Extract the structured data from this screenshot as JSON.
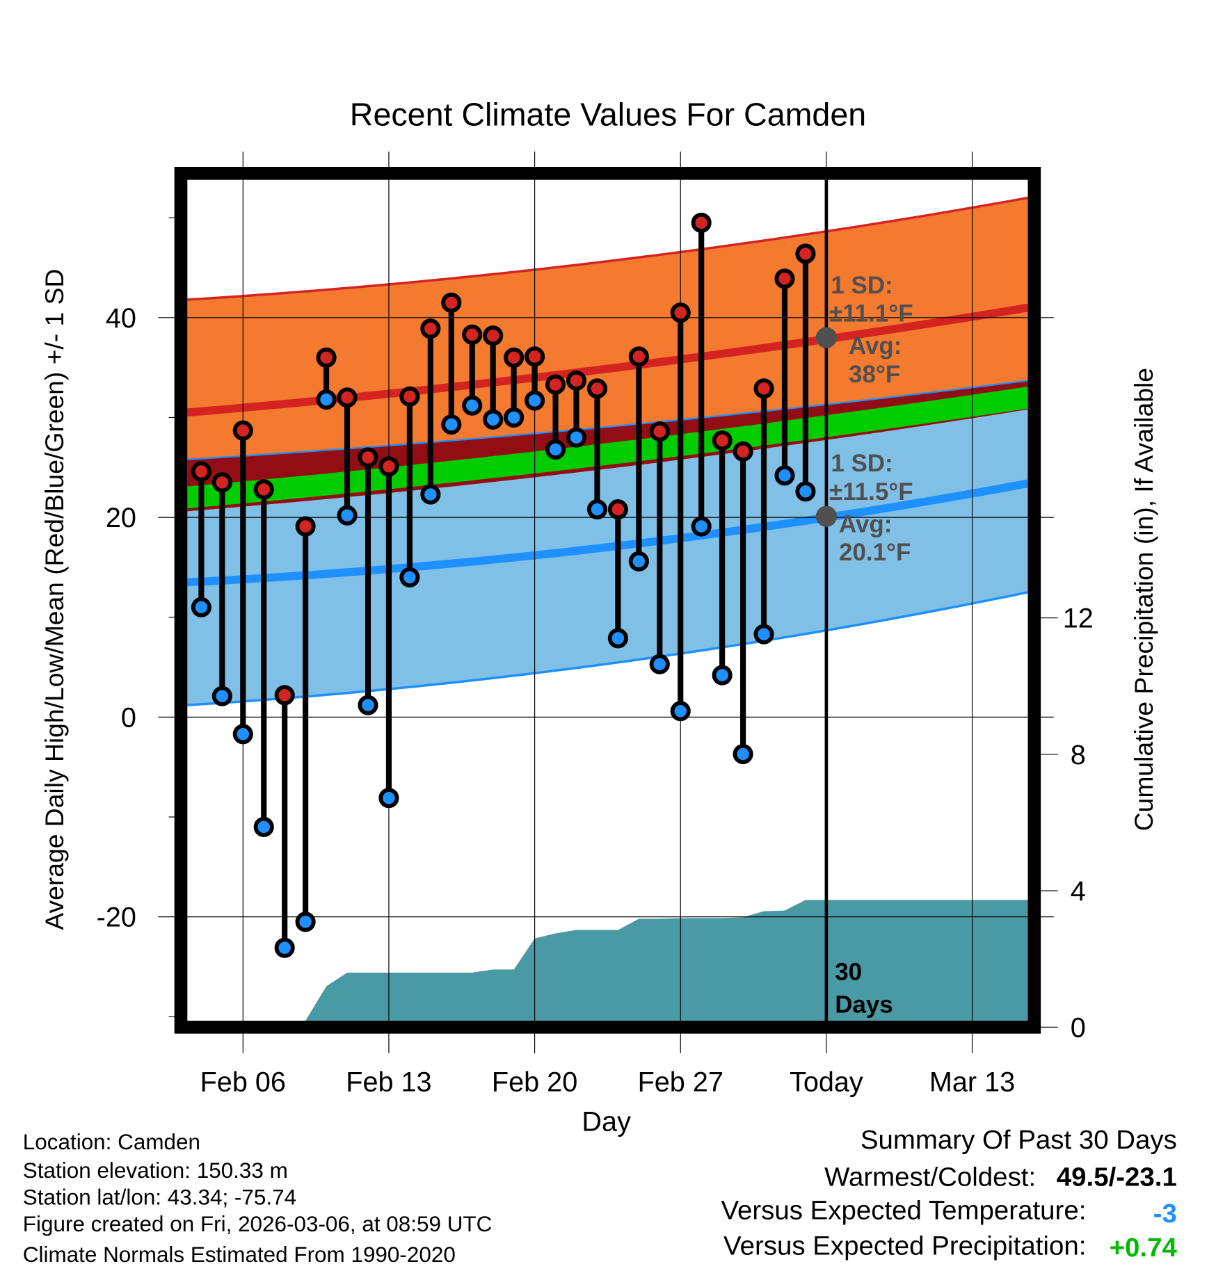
{
  "chart_data": {
    "type": "line",
    "title": "Recent Climate Values For Camden",
    "xlabel": "Day",
    "ylabel": "Average Daily High/Low/Mean (Red/Blue/Green) +/- 1 SD",
    "y2label": "Cumulative Precipitation (in), If Available",
    "ylim": [
      -30.4,
      53.8
    ],
    "y2lim": [
      0,
      16
    ],
    "xlim_day_index": [
      -0.67,
      39.67
    ],
    "x_ticks": [
      {
        "day_index": 2,
        "label": "Feb 06"
      },
      {
        "day_index": 9,
        "label": "Feb 13"
      },
      {
        "day_index": 16,
        "label": "Feb 20"
      },
      {
        "day_index": 23,
        "label": "Feb 27"
      },
      {
        "day_index": 30,
        "label": "Today"
      },
      {
        "day_index": 37,
        "label": "Mar 13"
      }
    ],
    "y_ticks": [
      "40",
      "20",
      "0",
      "-20"
    ],
    "y_tick_values": [
      40,
      20,
      0,
      -20
    ],
    "y_minor_ticks": [
      50,
      30,
      10,
      -10,
      -30
    ],
    "y2_ticks": [
      "0",
      "4",
      "8",
      "12"
    ],
    "y2_tick_values": [
      0,
      4,
      8,
      12
    ],
    "dates": [
      "Feb 04",
      "Feb 05",
      "Feb 06",
      "Feb 07",
      "Feb 08",
      "Feb 09",
      "Feb 10",
      "Feb 11",
      "Feb 12",
      "Feb 13",
      "Feb 14",
      "Feb 15",
      "Feb 16",
      "Feb 17",
      "Feb 18",
      "Feb 19",
      "Feb 20",
      "Feb 21",
      "Feb 22",
      "Feb 23",
      "Feb 24",
      "Feb 25",
      "Feb 26",
      "Feb 27",
      "Feb 28",
      "Mar 01",
      "Mar 02",
      "Mar 03",
      "Mar 04",
      "Mar 05"
    ],
    "series": [
      {
        "name": "Daily High",
        "color": "#cc2222",
        "values": [
          24.6,
          23.5,
          28.7,
          22.8,
          2.2,
          19.1,
          36.0,
          32.0,
          26.0,
          25.1,
          32.1,
          38.9,
          41.5,
          38.3,
          38.2,
          36.0,
          36.1,
          33.3,
          33.7,
          32.9,
          20.8,
          36.1,
          28.6,
          40.5,
          49.5,
          27.7,
          26.6,
          32.9,
          43.9,
          46.4
        ]
      },
      {
        "name": "Daily Low",
        "color": "#1e90ff",
        "values": [
          11.0,
          2.1,
          -1.7,
          -11.0,
          -23.1,
          -20.5,
          31.8,
          20.2,
          1.2,
          -8.1,
          14.0,
          22.3,
          29.3,
          31.2,
          29.8,
          30.0,
          31.7,
          26.8,
          28.0,
          20.8,
          7.9,
          15.6,
          5.3,
          0.6,
          19.1,
          4.2,
          -3.7,
          8.3,
          24.2,
          22.6
        ]
      },
      {
        "name": "Cumulative Precipitation",
        "color": "#4a9aa5",
        "values": [
          0,
          0,
          0,
          0,
          0.02,
          0.02,
          1.2,
          1.6,
          1.6,
          1.6,
          1.6,
          1.6,
          1.6,
          1.6,
          1.69,
          1.69,
          2.6,
          2.75,
          2.85,
          2.85,
          2.85,
          3.18,
          3.18,
          3.2,
          3.2,
          3.2,
          3.22,
          3.4,
          3.42,
          3.73
        ]
      }
    ],
    "normals": {
      "day_index": [
        -0.67,
        16,
        39.67
      ],
      "high_plus_sd": [
        41.8,
        44.8,
        52.0
      ],
      "high_avg": [
        30.5,
        34.0,
        41.0
      ],
      "high_minus_sd": [
        25.8,
        28.4,
        33.7
      ],
      "mean_avg": [
        22.0,
        25.5,
        32.0
      ],
      "low_plus_sd": [
        20.6,
        24.0,
        30.8
      ],
      "low_avg": [
        13.5,
        16.2,
        23.4
      ],
      "low_minus_sd": [
        1.2,
        4.4,
        12.5
      ]
    },
    "today_markers": {
      "high_avg": 38,
      "low_avg": 20.1
    },
    "annotations": {
      "high_sd_line1": "1 SD:",
      "high_sd_line2": "±11.1°F",
      "high_avg_line1": "Avg:",
      "high_avg_line2": "38°F",
      "low_sd_line1": "1 SD:",
      "low_sd_line2": "±11.5°F",
      "low_avg_line1": "Avg:",
      "low_avg_line2": "20.1°F",
      "days_line1": "30",
      "days_line2": "Days"
    },
    "colors": {
      "high_band": "#f47a2f",
      "gap_band": "#920e14",
      "mean_band": "#00cc00",
      "low_band": "#80c0e6",
      "high_line": "#d42422",
      "low_line": "#1e90ff",
      "precip": "#4a9aa5",
      "marker_today": "#505050"
    }
  },
  "info": {
    "lines": [
      "Location: Camden",
      "Station elevation: 150.33 m",
      "Station lat/lon: 43.34; -75.74",
      "Figure created on Fri, 2026-03-06, at 08:59 UTC",
      "Climate Normals Estimated From 1990-2020"
    ]
  },
  "summary": {
    "title": "Summary Of Past 30 Days",
    "warmest_coldest_label": "Warmest/Coldest:",
    "warmest_coldest_value": "49.5/-23.1",
    "temp_label": "Versus Expected Temperature:",
    "temp_value": "-3",
    "temp_color": "#1e90ff",
    "precip_label": "Versus Expected Precipitation:",
    "precip_value": "+0.74",
    "precip_color": "#00bb00"
  }
}
